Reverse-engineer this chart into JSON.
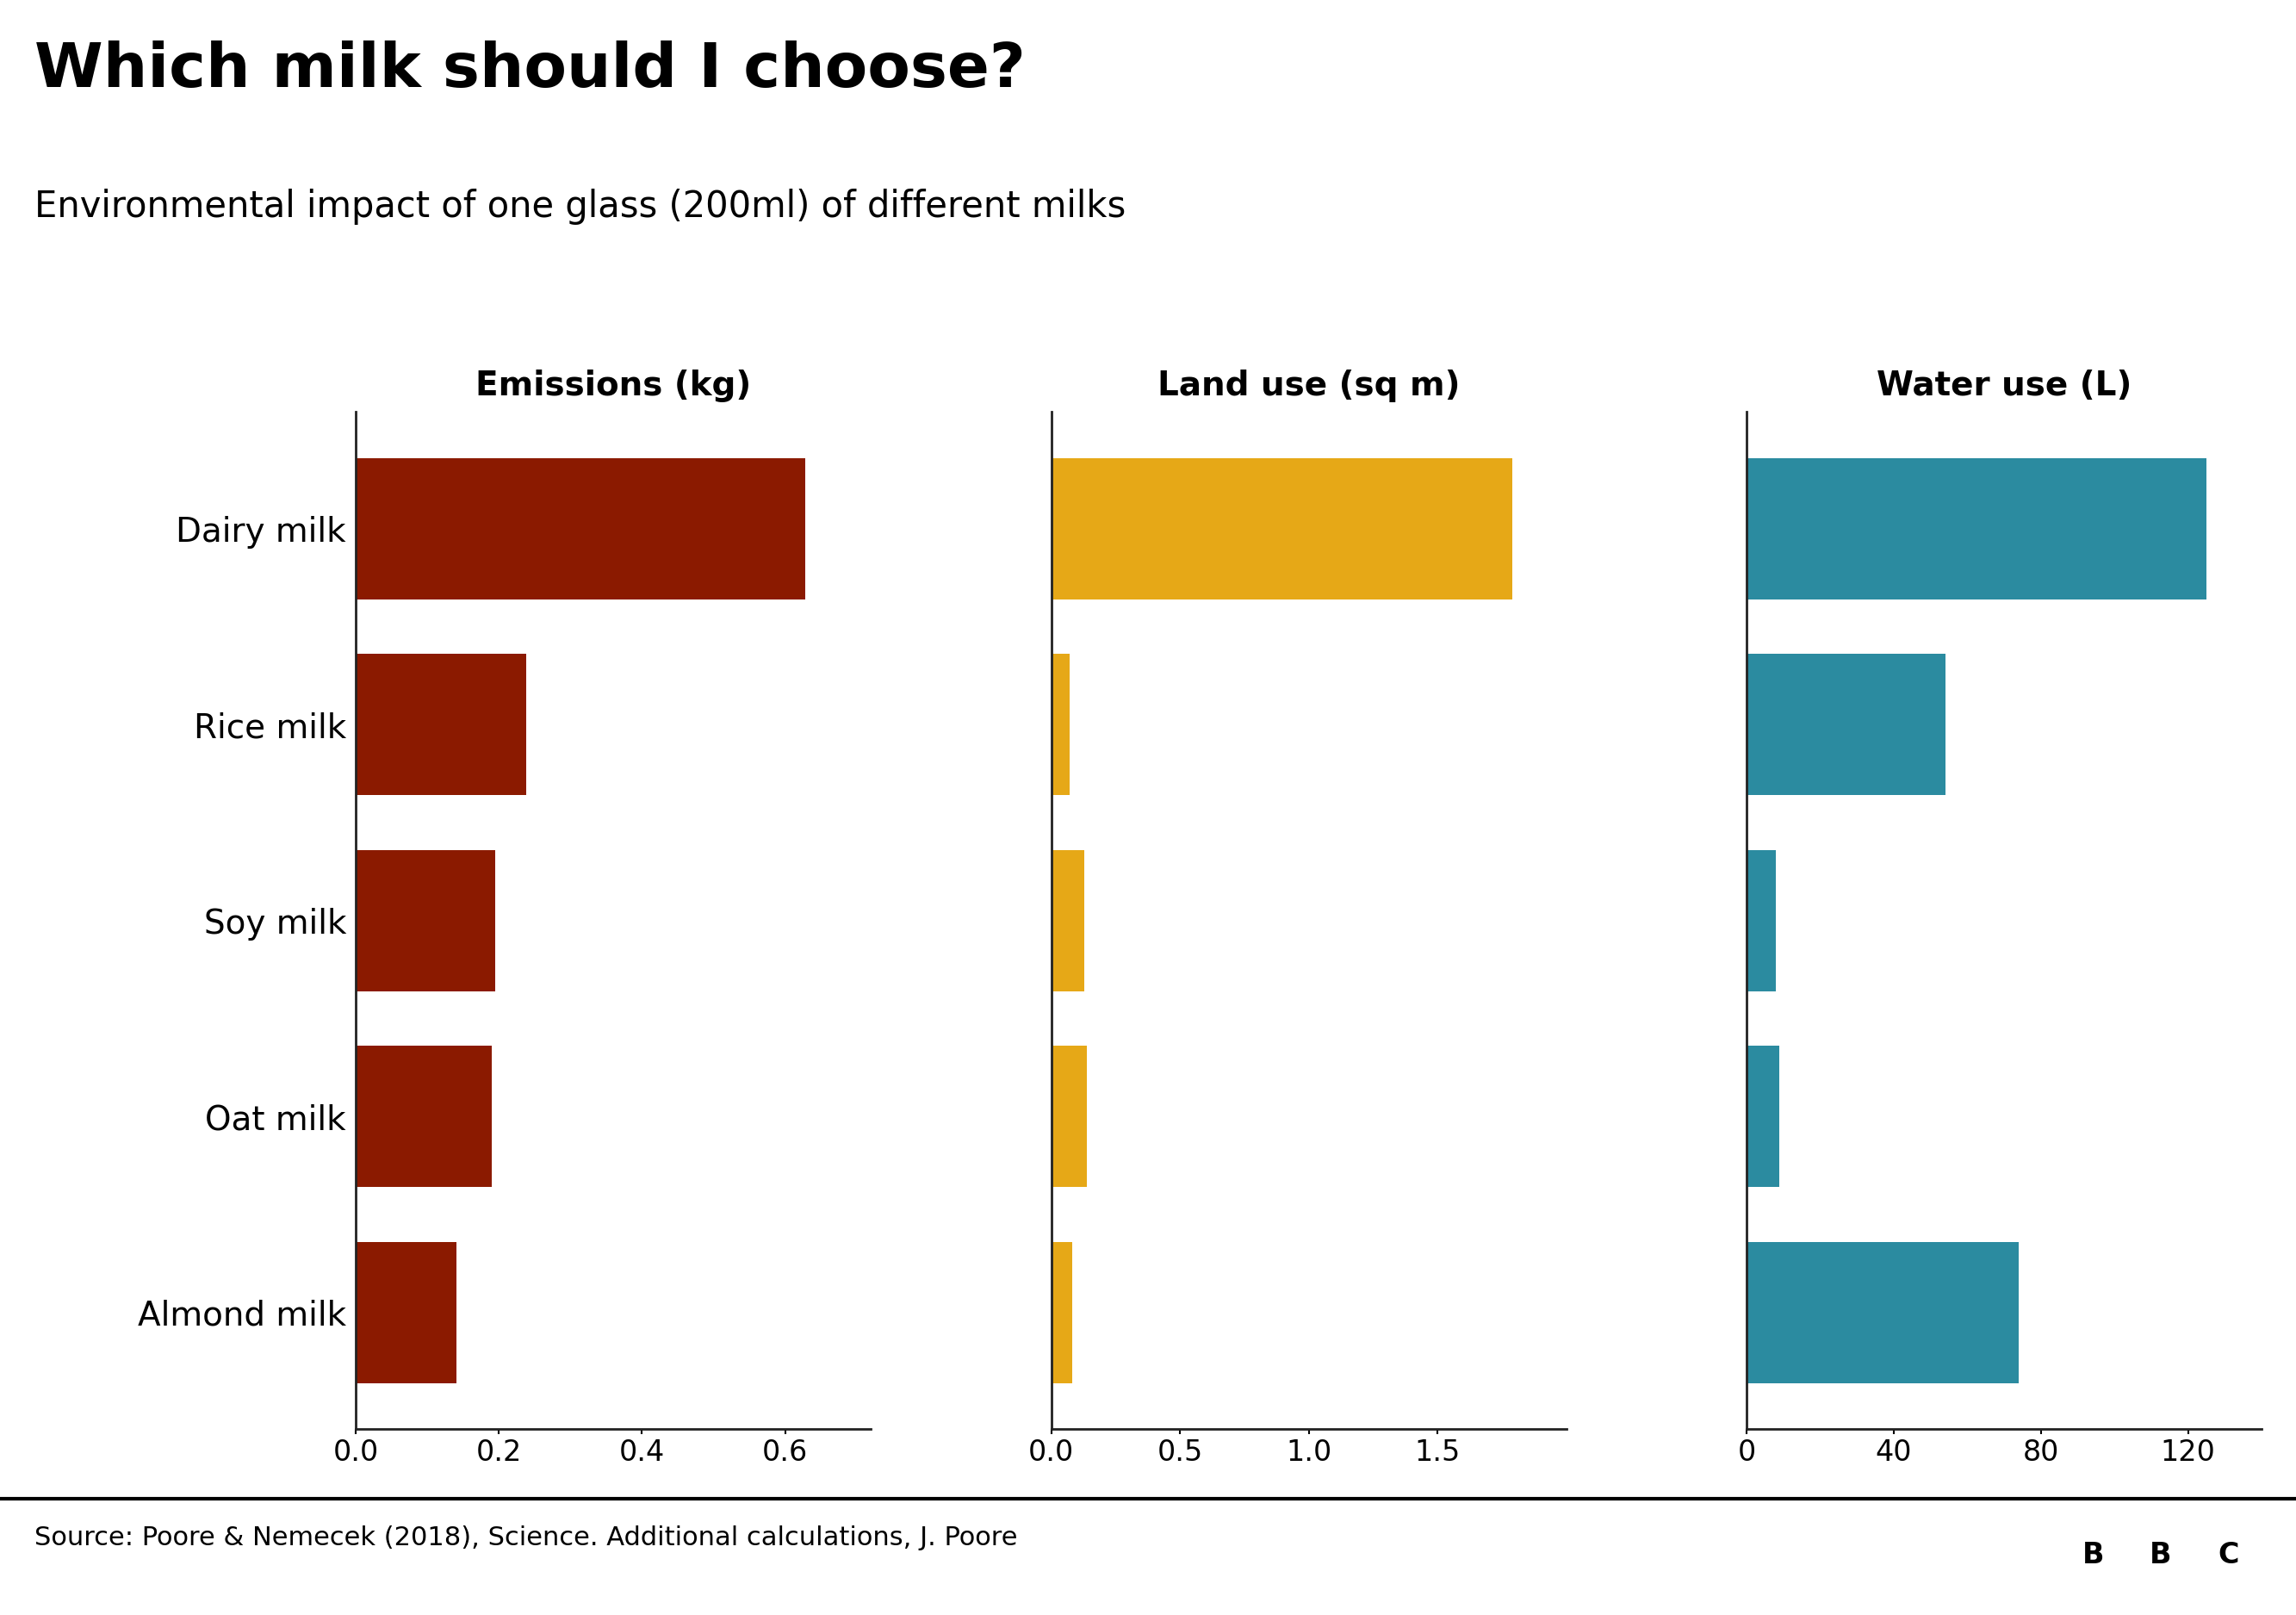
{
  "title": "Which milk should I choose?",
  "subtitle": "Environmental impact of one glass (200ml) of different milks",
  "milks": [
    "Dairy milk",
    "Rice milk",
    "Soy milk",
    "Oat milk",
    "Almond milk"
  ],
  "emissions": [
    0.628,
    0.238,
    0.195,
    0.19,
    0.14
  ],
  "land_use": [
    1.79,
    0.07,
    0.13,
    0.14,
    0.08
  ],
  "water_use": [
    125.0,
    54.0,
    8.0,
    9.0,
    74.0
  ],
  "emissions_color": "#8B1A00",
  "land_color": "#E6A817",
  "water_color": "#2B8BA0",
  "emissions_label": "Emissions (kg)",
  "land_label": "Land use (sq m)",
  "water_label": "Water use (L)",
  "emissions_xlim": [
    0,
    0.72
  ],
  "land_xlim": [
    0,
    2.0
  ],
  "water_xlim": [
    0,
    140
  ],
  "emissions_xticks": [
    0.0,
    0.2,
    0.4,
    0.6
  ],
  "land_xticks": [
    0.0,
    0.5,
    1.0,
    1.5
  ],
  "water_xticks": [
    0,
    40,
    80,
    120
  ],
  "source_text": "Source: Poore & Nemecek (2018), Science. Additional calculations, J. Poore",
  "bg_color": "#FFFFFF",
  "title_fontsize": 52,
  "subtitle_fontsize": 30,
  "label_fontsize": 28,
  "tick_fontsize": 24,
  "milk_fontsize": 28,
  "source_fontsize": 22,
  "bar_height": 0.72
}
